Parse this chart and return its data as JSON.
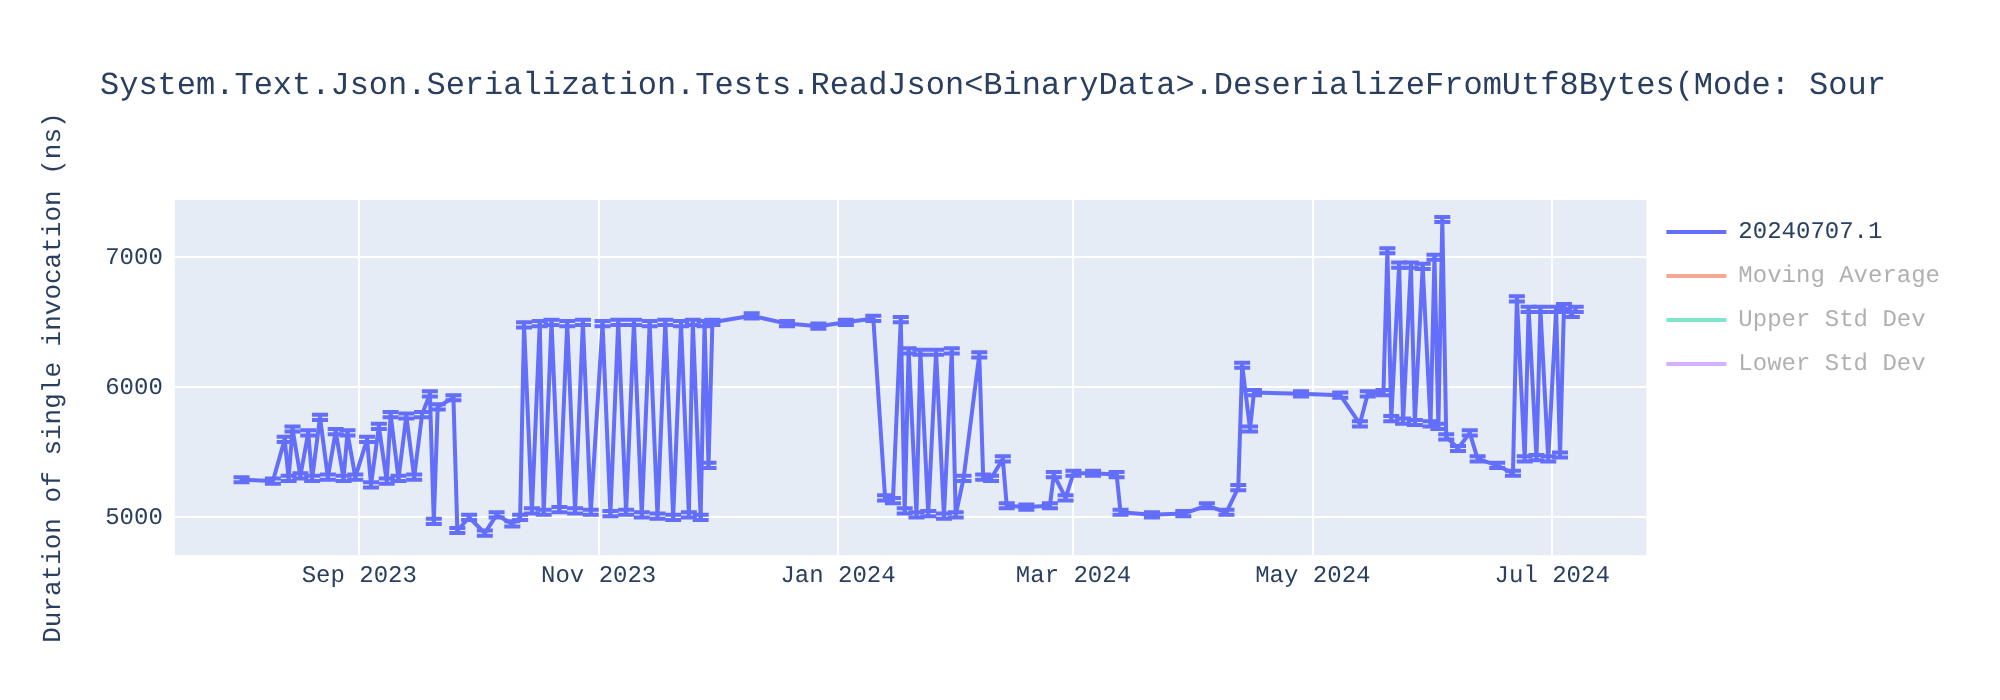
{
  "chart_data": {
    "type": "line",
    "title": "System.Text.Json.Serialization.Tests.ReadJson<BinaryData>.DeserializeFromUtf8Bytes(Mode: Sour",
    "ylabel": "Duration of single invocation (ns)",
    "x": [
      "2023-08-02",
      "2023-08-10",
      "2023-08-13",
      "2023-08-14",
      "2023-08-15",
      "2023-08-17",
      "2023-08-19",
      "2023-08-20",
      "2023-08-22",
      "2023-08-24",
      "2023-08-26",
      "2023-08-28",
      "2023-08-29",
      "2023-08-31",
      "2023-09-03",
      "2023-09-04",
      "2023-09-06",
      "2023-09-08",
      "2023-09-09",
      "2023-09-11",
      "2023-09-13",
      "2023-09-15",
      "2023-09-17",
      "2023-09-19",
      "2023-09-20",
      "2023-09-21",
      "2023-09-25",
      "2023-09-26",
      "2023-09-29",
      "2023-10-03",
      "2023-10-06",
      "2023-10-10",
      "2023-10-12",
      "2023-10-13",
      "2023-10-15",
      "2023-10-17",
      "2023-10-18",
      "2023-10-20",
      "2023-10-22",
      "2023-10-24",
      "2023-10-26",
      "2023-10-28",
      "2023-10-30",
      "2023-11-02",
      "2023-11-04",
      "2023-11-06",
      "2023-11-08",
      "2023-11-10",
      "2023-11-12",
      "2023-11-14",
      "2023-11-16",
      "2023-11-18",
      "2023-11-20",
      "2023-11-22",
      "2023-11-24",
      "2023-11-25",
      "2023-11-27",
      "2023-11-28",
      "2023-11-29",
      "2023-11-30",
      "2023-12-10",
      "2023-12-19",
      "2023-12-27",
      "2024-01-03",
      "2024-01-10",
      "2024-01-13",
      "2024-01-15",
      "2024-01-17",
      "2024-01-18",
      "2024-01-19",
      "2024-01-21",
      "2024-01-22",
      "2024-01-24",
      "2024-01-26",
      "2024-01-28",
      "2024-01-30",
      "2024-01-31",
      "2024-02-02",
      "2024-02-06",
      "2024-02-07",
      "2024-02-09",
      "2024-02-12",
      "2024-02-13",
      "2024-02-18",
      "2024-02-24",
      "2024-02-25",
      "2024-02-28",
      "2024-03-01",
      "2024-03-06",
      "2024-03-12",
      "2024-03-13",
      "2024-03-21",
      "2024-03-29",
      "2024-04-04",
      "2024-04-09",
      "2024-04-12",
      "2024-04-13",
      "2024-04-15",
      "2024-04-16",
      "2024-04-28",
      "2024-05-08",
      "2024-05-13",
      "2024-05-15",
      "2024-05-19",
      "2024-05-20",
      "2024-05-21",
      "2024-05-23",
      "2024-05-24",
      "2024-05-26",
      "2024-05-27",
      "2024-05-29",
      "2024-05-31",
      "2024-06-01",
      "2024-06-02",
      "2024-06-03",
      "2024-06-04",
      "2024-06-07",
      "2024-06-10",
      "2024-06-12",
      "2024-06-17",
      "2024-06-21",
      "2024-06-22",
      "2024-06-24",
      "2024-06-25",
      "2024-06-27",
      "2024-06-28",
      "2024-06-30",
      "2024-07-02",
      "2024-07-03",
      "2024-07-04",
      "2024-07-06",
      "2024-07-07"
    ],
    "series": [
      {
        "name": "20240707.1",
        "color": "#636efa",
        "values": [
          5290,
          5280,
          5600,
          5300,
          5680,
          5320,
          5650,
          5300,
          5770,
          5310,
          5660,
          5300,
          5650,
          5310,
          5600,
          5250,
          5700,
          5280,
          5790,
          5300,
          5780,
          5310,
          5790,
          5950,
          4970,
          5850,
          5920,
          4900,
          5000,
          4880,
          5020,
          4950,
          5000,
          6480,
          5050,
          6490,
          5040,
          6500,
          5060,
          6490,
          5050,
          6500,
          5040,
          6490,
          5030,
          6500,
          5040,
          6500,
          5020,
          6490,
          5010,
          6500,
          5000,
          6490,
          5020,
          6500,
          5000,
          6490,
          5400,
          6500,
          6550,
          6490,
          6470,
          6500,
          6530,
          5150,
          5130,
          6520,
          5050,
          6280,
          5020,
          6270,
          5030,
          6270,
          5010,
          6280,
          5020,
          5300,
          6250,
          5310,
          5300,
          5450,
          5090,
          5080,
          5090,
          5330,
          5150,
          5340,
          5340,
          5330,
          5040,
          5020,
          5030,
          5090,
          5040,
          5230,
          6170,
          5680,
          5960,
          5950,
          5940,
          5720,
          5950,
          5960,
          7050,
          5760,
          6940,
          5740,
          6940,
          5730,
          6930,
          5720,
          7000,
          5700,
          7290,
          5620,
          5530,
          5650,
          5450,
          5400,
          5340,
          6680,
          5450,
          6600,
          5460,
          6600,
          5450,
          6600,
          5480,
          6620,
          6560,
          6600
        ],
        "errors": [
          20,
          20,
          20,
          20,
          20,
          20,
          20,
          20,
          20,
          20,
          20,
          20,
          20,
          20,
          20,
          20,
          20,
          20,
          20,
          20,
          20,
          20,
          20,
          20,
          20,
          20,
          20,
          20,
          20,
          20,
          20,
          20,
          20,
          20,
          20,
          20,
          20,
          20,
          20,
          20,
          20,
          20,
          20,
          20,
          20,
          20,
          20,
          20,
          20,
          20,
          20,
          20,
          20,
          20,
          20,
          20,
          20,
          20,
          20,
          20,
          20,
          20,
          20,
          20,
          20,
          20,
          20,
          20,
          20,
          20,
          20,
          20,
          20,
          20,
          20,
          20,
          20,
          20,
          20,
          20,
          20,
          20,
          20,
          20,
          20,
          20,
          20,
          20,
          20,
          20,
          20,
          20,
          20,
          20,
          20,
          20,
          20,
          20,
          20,
          20,
          20,
          20,
          20,
          20,
          20,
          20,
          20,
          20,
          20,
          20,
          20,
          20,
          20,
          20,
          20,
          20,
          20,
          20,
          20,
          20,
          20,
          20,
          20,
          20,
          20,
          20,
          20,
          20,
          20,
          20,
          20,
          20
        ]
      },
      {
        "name": "Moving Average",
        "color": "#f4a896",
        "values": [
          null,
          null,
          null,
          null,
          null,
          null,
          null,
          null,
          null,
          null,
          null,
          null,
          null,
          null,
          null,
          null,
          null,
          null,
          null,
          null,
          null,
          null,
          null,
          null,
          null,
          null,
          null,
          null,
          null,
          null,
          null,
          null,
          null,
          null,
          null,
          null,
          null,
          null,
          null,
          null,
          null,
          null,
          null,
          null,
          null,
          null,
          null,
          null,
          null,
          null,
          null,
          null,
          null,
          null,
          null,
          null,
          null,
          null,
          null,
          null,
          null,
          null,
          null,
          null,
          null,
          null,
          null,
          null,
          null,
          null,
          null,
          null,
          null,
          null,
          null,
          null,
          null,
          null,
          null,
          null,
          null,
          null,
          null,
          null,
          null,
          null,
          null,
          null,
          null,
          null,
          null,
          null,
          null,
          null,
          null,
          null,
          null,
          null,
          null,
          null,
          null,
          null,
          null,
          null,
          null,
          null,
          null,
          null,
          null,
          null,
          null,
          null,
          null,
          null,
          null,
          null,
          null,
          null,
          null,
          null,
          null,
          null,
          null,
          null,
          null,
          null,
          null,
          null,
          null,
          null,
          null,
          null
        ]
      },
      {
        "name": "Upper Std Dev",
        "color": "#80e5ca",
        "values": [
          null,
          null,
          null,
          null,
          null,
          null,
          null,
          null,
          null,
          null,
          null,
          null,
          null,
          null,
          null,
          null,
          null,
          null,
          null,
          null,
          null,
          null,
          null,
          null,
          null,
          null,
          null,
          null,
          null,
          null,
          null,
          null,
          null,
          null,
          null,
          null,
          null,
          null,
          null,
          null,
          null,
          null,
          null,
          null,
          null,
          null,
          null,
          null,
          null,
          null,
          null,
          null,
          null,
          null,
          null,
          null,
          null,
          null,
          null,
          null,
          null,
          null,
          null,
          null,
          null,
          null,
          null,
          null,
          null,
          null,
          null,
          null,
          null,
          null,
          null,
          null,
          null,
          null,
          null,
          null,
          null,
          null,
          null,
          null,
          null,
          null,
          null,
          null,
          null,
          null,
          null,
          null,
          null,
          null,
          null,
          null,
          null,
          null,
          null,
          null,
          null,
          null,
          null,
          null,
          null,
          null,
          null,
          null,
          null,
          null,
          null,
          null,
          null,
          null,
          null,
          null,
          null,
          null,
          null,
          null,
          null,
          null,
          null,
          null,
          null,
          null,
          null,
          null,
          null,
          null,
          null,
          null
        ]
      },
      {
        "name": "Lower Std Dev",
        "color": "#d5b1fc",
        "values": [
          null,
          null,
          null,
          null,
          null,
          null,
          null,
          null,
          null,
          null,
          null,
          null,
          null,
          null,
          null,
          null,
          null,
          null,
          null,
          null,
          null,
          null,
          null,
          null,
          null,
          null,
          null,
          null,
          null,
          null,
          null,
          null,
          null,
          null,
          null,
          null,
          null,
          null,
          null,
          null,
          null,
          null,
          null,
          null,
          null,
          null,
          null,
          null,
          null,
          null,
          null,
          null,
          null,
          null,
          null,
          null,
          null,
          null,
          null,
          null,
          null,
          null,
          null,
          null,
          null,
          null,
          null,
          null,
          null,
          null,
          null,
          null,
          null,
          null,
          null,
          null,
          null,
          null,
          null,
          null,
          null,
          null,
          null,
          null,
          null,
          null,
          null,
          null,
          null,
          null,
          null,
          null,
          null,
          null,
          null,
          null,
          null,
          null,
          null,
          null,
          null,
          null,
          null,
          null,
          null,
          null,
          null,
          null,
          null,
          null,
          null,
          null,
          null,
          null,
          null,
          null,
          null,
          null,
          null,
          null,
          null,
          null,
          null,
          null,
          null,
          null,
          null,
          null,
          null,
          null,
          null,
          null
        ]
      }
    ],
    "xlim": [
      "2023-07-16",
      "2024-07-25"
    ],
    "xticks": [
      {
        "value": "2023-09-01",
        "label": "Sep 2023"
      },
      {
        "value": "2023-11-01",
        "label": "Nov 2023"
      },
      {
        "value": "2024-01-01",
        "label": "Jan 2024"
      },
      {
        "value": "2024-03-01",
        "label": "Mar 2024"
      },
      {
        "value": "2024-05-01",
        "label": "May 2024"
      },
      {
        "value": "2024-07-01",
        "label": "Jul 2024"
      }
    ],
    "ylim": [
      4710,
      7440
    ],
    "yticks": [
      5000,
      6000,
      7000
    ],
    "grid": true,
    "legend": "right",
    "marker": "none",
    "line_style": "solid"
  }
}
